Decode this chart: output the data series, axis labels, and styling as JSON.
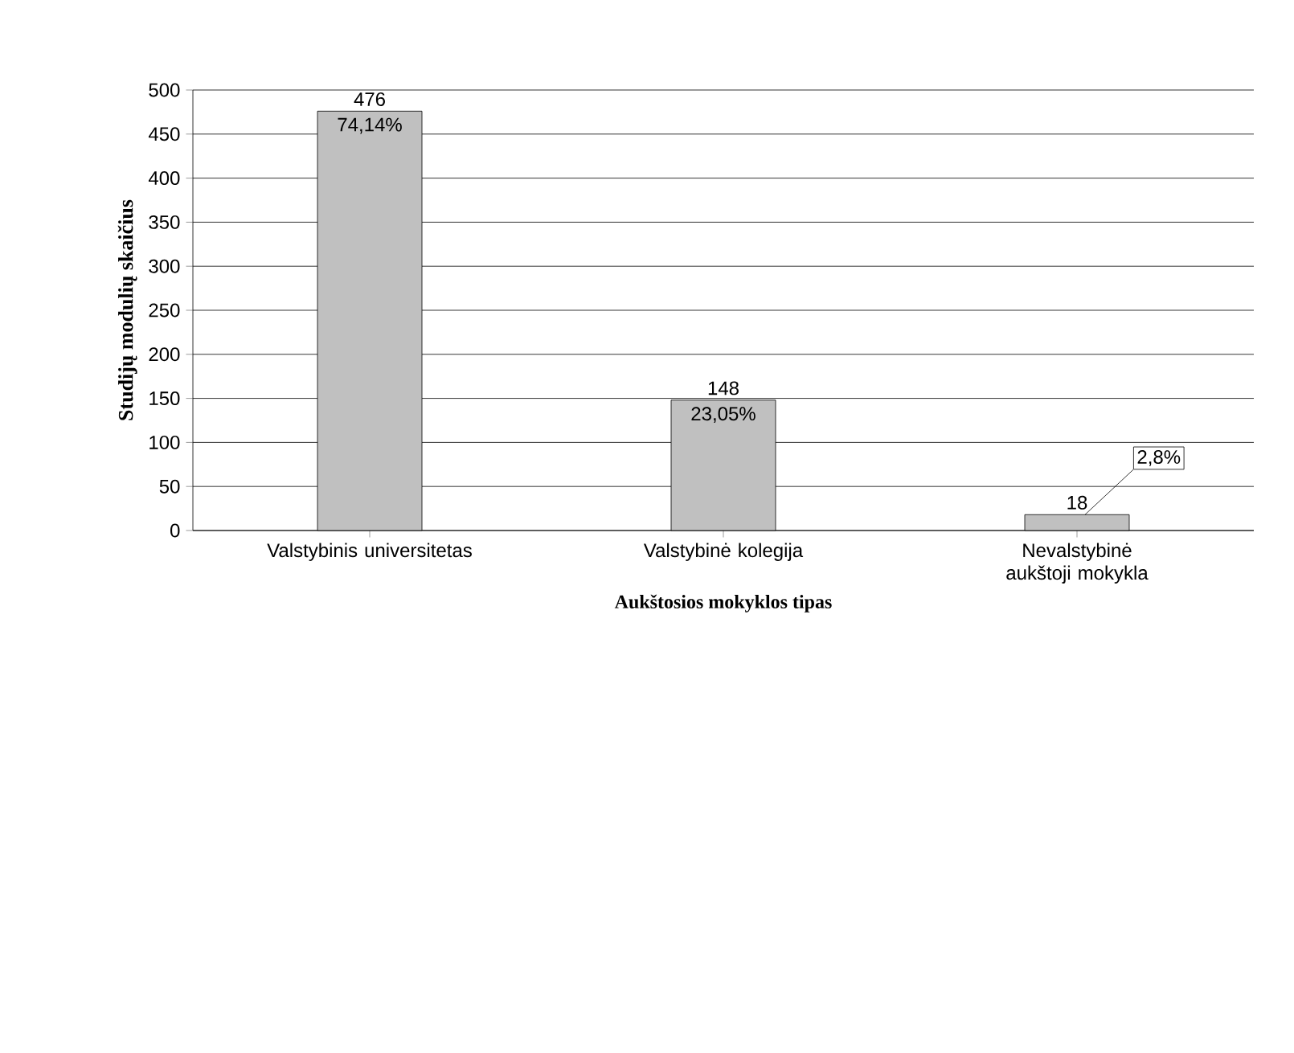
{
  "chart_data": {
    "type": "bar",
    "xlabel": "Aukštosios mokyklos tipas",
    "ylabel": "Studijų modulių skaičius",
    "categories": [
      "Valstybinis universitetas",
      "Valstybinė kolegija",
      "Nevalstybinė aukštoji mokykla"
    ],
    "values": [
      476,
      148,
      18
    ],
    "color": "#c0c0c0",
    "data_labels": true,
    "ylim": [
      0,
      500
    ],
    "yticks": [
      0,
      50,
      100,
      150,
      200,
      250,
      300,
      350,
      400,
      450,
      500
    ],
    "grid": "y",
    "annotations": [
      {
        "text": "74,14%",
        "x": "Valstybinis universitetas",
        "y": 476
      },
      {
        "text": "23,05%",
        "x": "Valstybinė kolegija",
        "y": 148
      },
      {
        "text": "2,8%",
        "x": "Nevalstybinė aukštoji mokykla",
        "y": 18
      }
    ]
  }
}
